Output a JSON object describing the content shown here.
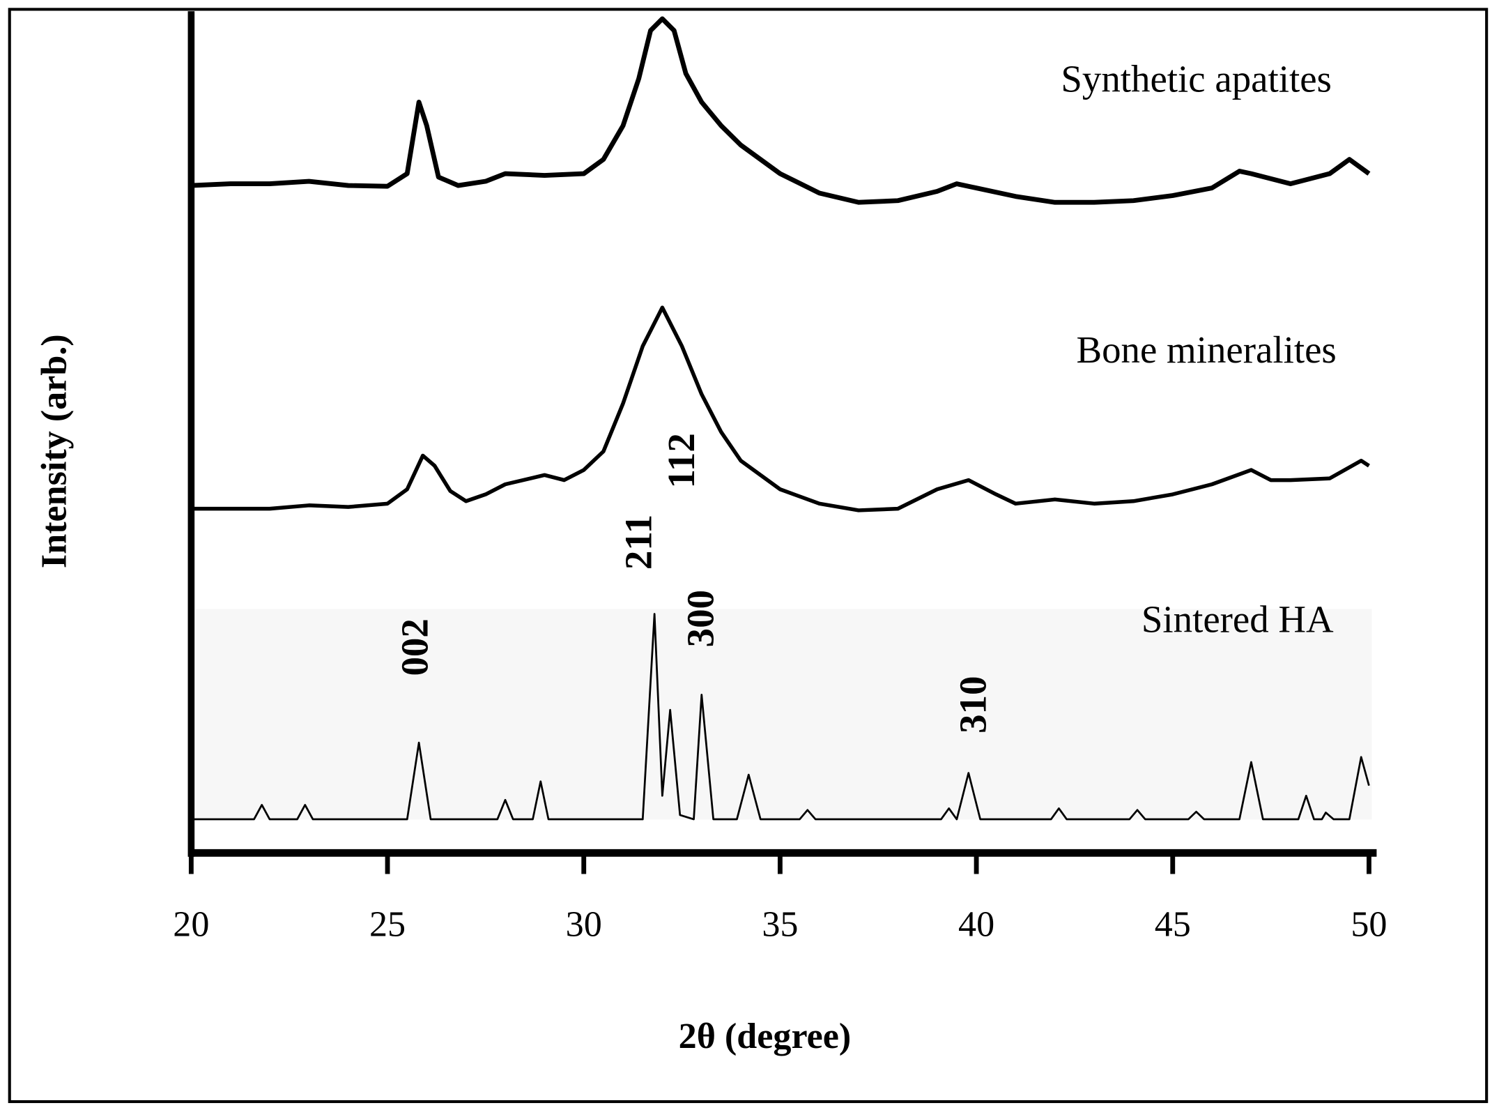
{
  "chart_data": {
    "type": "line",
    "xlabel": "2θ (degree)",
    "ylabel": "Intensity (arb.)",
    "xlim": [
      20,
      50
    ],
    "xticks": [
      20,
      25,
      30,
      35,
      40,
      45,
      50
    ],
    "ylim": [
      0,
      100
    ],
    "series": [
      {
        "name": "Synthetic apatites",
        "color": "#000000",
        "x": [
          20,
          21,
          22,
          23,
          24,
          25,
          25.5,
          25.8,
          26.0,
          26.3,
          26.8,
          27.5,
          28,
          29,
          30,
          30.5,
          31,
          31.4,
          31.7,
          32.0,
          32.3,
          32.6,
          33,
          33.5,
          34,
          35,
          36,
          37,
          38,
          39,
          39.5,
          40,
          41,
          42,
          43,
          44,
          45,
          46,
          46.7,
          47,
          48,
          49,
          49.5,
          50
        ],
        "values": [
          79.3,
          79.5,
          79.5,
          79.8,
          79.3,
          79.2,
          80.7,
          89.2,
          86.4,
          80.3,
          79.3,
          79.8,
          80.7,
          80.5,
          80.7,
          82.4,
          86.4,
          92.0,
          97.7,
          99.1,
          97.7,
          92.6,
          89.2,
          86.4,
          84.1,
          80.7,
          78.4,
          77.3,
          77.5,
          78.6,
          79.5,
          79.0,
          78.0,
          77.3,
          77.3,
          77.5,
          78.1,
          79.0,
          81.0,
          80.7,
          79.5,
          80.7,
          82.4,
          80.7
        ]
      },
      {
        "name": "Bone mineralites",
        "color": "#000000",
        "x": [
          20,
          22,
          23,
          24,
          25,
          25.5,
          25.9,
          26.2,
          26.6,
          27,
          27.5,
          28,
          29,
          29.5,
          30,
          30.5,
          31,
          31.5,
          32,
          32.5,
          33,
          33.5,
          34,
          35,
          36,
          37,
          38,
          39,
          39.8,
          40.5,
          41,
          42,
          43,
          44,
          45,
          46,
          47,
          47.5,
          48,
          49,
          49.8,
          50
        ],
        "values": [
          40.9,
          40.9,
          41.3,
          41.1,
          41.5,
          43.2,
          47.2,
          46.0,
          43.0,
          41.8,
          42.6,
          43.8,
          44.9,
          44.3,
          45.5,
          47.7,
          53.4,
          60.2,
          64.8,
          60.2,
          54.5,
          50.0,
          46.6,
          43.2,
          41.5,
          40.7,
          40.9,
          43.2,
          44.3,
          42.6,
          41.5,
          42.0,
          41.5,
          41.8,
          42.6,
          43.8,
          45.5,
          44.3,
          44.3,
          44.5,
          46.6,
          46.0
        ]
      },
      {
        "name": "Sintered HA",
        "color": "#000000",
        "x": [
          20,
          21.6,
          21.8,
          22.0,
          22.7,
          22.9,
          23.1,
          25.5,
          25.8,
          26.1,
          27.8,
          28.0,
          28.2,
          28.7,
          28.9,
          29.1,
          31.5,
          31.8,
          32.0,
          32.2,
          32.45,
          32.8,
          33.0,
          33.3,
          33.9,
          34.2,
          34.5,
          35.5,
          35.7,
          35.9,
          39.1,
          39.3,
          39.5,
          39.8,
          40.1,
          41.9,
          42.1,
          42.3,
          43.9,
          44.1,
          44.3,
          45.4,
          45.6,
          45.8,
          46.7,
          47.0,
          47.3,
          48.2,
          48.4,
          48.6,
          48.8,
          48.9,
          49.1,
          49.5,
          49.8,
          50
        ],
        "values": [
          4,
          4,
          5.7,
          4,
          4,
          5.7,
          4,
          4,
          13.1,
          4,
          4,
          6.3,
          4,
          4,
          8.5,
          4,
          4,
          28.4,
          6.8,
          17.0,
          4.5,
          4,
          18.8,
          4,
          4,
          9.3,
          4,
          4,
          5.1,
          4,
          4,
          5.3,
          4,
          9.5,
          4,
          4,
          5.3,
          4,
          4,
          5.1,
          4,
          4,
          4.9,
          4,
          4,
          10.8,
          4,
          4,
          6.8,
          4,
          4,
          4.8,
          4,
          4,
          11.4,
          8.0
        ]
      }
    ],
    "annotations": [
      "002",
      "211",
      "112",
      "300",
      "310"
    ]
  }
}
